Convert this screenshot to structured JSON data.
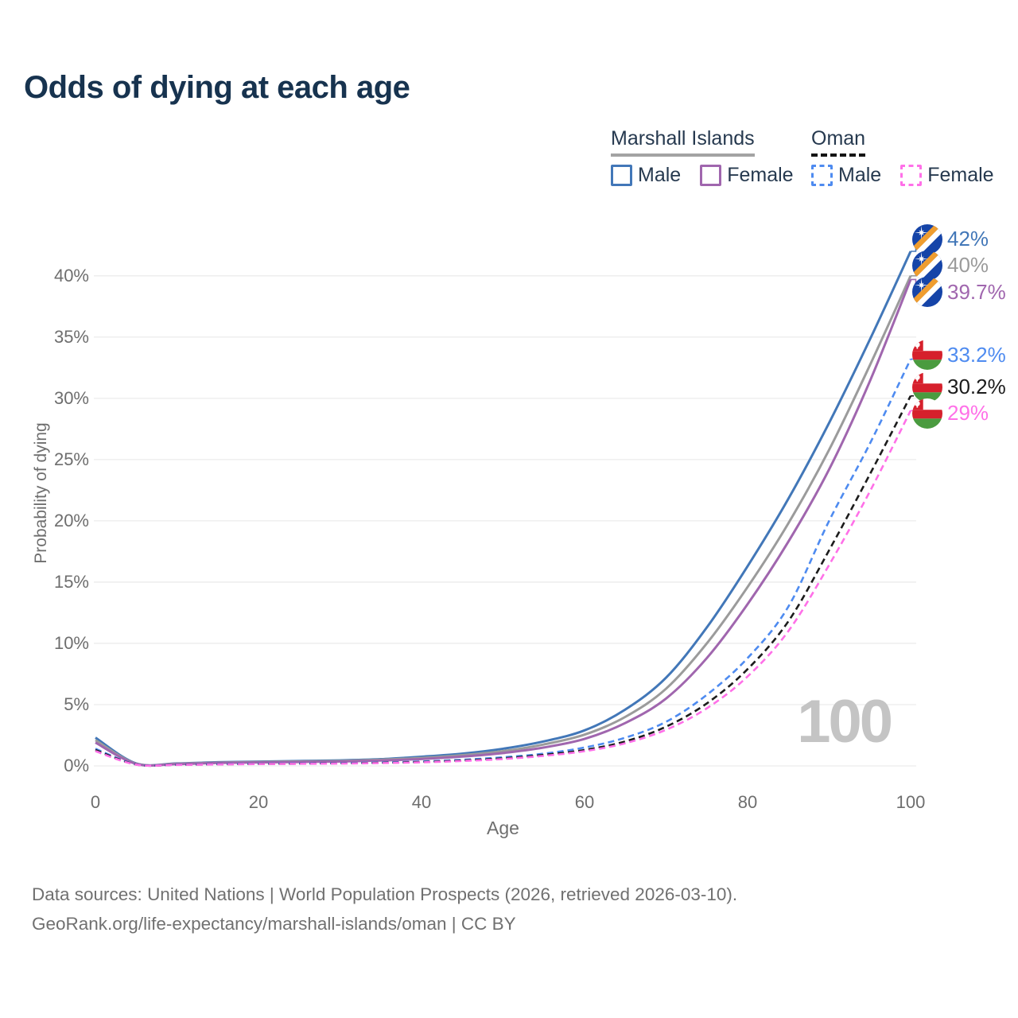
{
  "title": "Odds of dying at each age",
  "legend": {
    "groups": [
      {
        "name": "Marshall Islands",
        "line_style": "solid",
        "underline_color": "#a3a3a3",
        "items": [
          {
            "label": "Male",
            "color": "#4277b8"
          },
          {
            "label": "Female",
            "color": "#a066ae"
          }
        ]
      },
      {
        "name": "Oman",
        "line_style": "dashed",
        "underline_color": "#141414",
        "items": [
          {
            "label": "Male",
            "color": "#4e8bf0"
          },
          {
            "label": "Female",
            "color": "#ff70e8"
          }
        ]
      }
    ]
  },
  "chart_data": {
    "type": "line",
    "title": "Odds of dying at each age",
    "xlabel": "Age",
    "ylabel": "Probability of dying",
    "xlim": [
      0,
      100
    ],
    "ylim": [
      0,
      44
    ],
    "xticks": [
      0,
      20,
      40,
      60,
      80,
      100
    ],
    "yticks": [
      0,
      5,
      10,
      15,
      20,
      25,
      30,
      35,
      40
    ],
    "ytick_suffix": "%",
    "grid": "horizontal",
    "legend_position": "top-right",
    "watermark": "100",
    "x": [
      0,
      5,
      10,
      15,
      20,
      25,
      30,
      35,
      40,
      45,
      50,
      55,
      60,
      65,
      70,
      75,
      80,
      85,
      90,
      95,
      100
    ],
    "series": [
      {
        "id": "mi-male",
        "name": "Marshall Islands Male",
        "country": "Marshall Islands",
        "sex": "Male",
        "flag": "mh",
        "color": "#4277b8",
        "dashed": false,
        "end_label": "42%",
        "values": [
          2.3,
          0.2,
          0.2,
          0.3,
          0.35,
          0.4,
          0.45,
          0.55,
          0.75,
          1.0,
          1.4,
          2.0,
          2.9,
          4.6,
          7.2,
          11.3,
          16.3,
          21.8,
          28.0,
          34.8,
          42.0
        ]
      },
      {
        "id": "mi-total",
        "name": "Marshall Islands Both sexes",
        "country": "Marshall Islands",
        "sex": "Both",
        "flag": "mh",
        "color": "#9b9b9b",
        "dashed": false,
        "end_label": "40%",
        "values": [
          2.1,
          0.18,
          0.18,
          0.27,
          0.32,
          0.36,
          0.4,
          0.5,
          0.65,
          0.88,
          1.2,
          1.75,
          2.55,
          4.0,
          6.3,
          10.0,
          14.6,
          19.8,
          25.8,
          32.7,
          40.0
        ]
      },
      {
        "id": "mi-female",
        "name": "Marshall Islands Female",
        "country": "Marshall Islands",
        "sex": "Female",
        "flag": "mh",
        "color": "#a066ae",
        "dashed": false,
        "end_label": "39.7%",
        "values": [
          1.9,
          0.16,
          0.15,
          0.24,
          0.28,
          0.32,
          0.36,
          0.44,
          0.56,
          0.76,
          1.05,
          1.5,
          2.2,
          3.5,
          5.5,
          8.8,
          13.2,
          18.3,
          24.2,
          31.4,
          39.7
        ]
      },
      {
        "id": "om-male",
        "name": "Oman Male",
        "country": "Oman",
        "sex": "Male",
        "flag": "om",
        "color": "#4e8bf0",
        "dashed": true,
        "end_label": "33.2%",
        "values": [
          1.4,
          0.12,
          0.1,
          0.15,
          0.18,
          0.2,
          0.23,
          0.28,
          0.36,
          0.5,
          0.7,
          1.0,
          1.5,
          2.3,
          3.6,
          5.8,
          8.8,
          13.0,
          20.0,
          26.3,
          33.2
        ]
      },
      {
        "id": "om-total",
        "name": "Oman Both sexes",
        "country": "Oman",
        "sex": "Both",
        "flag": "om",
        "color": "#1c1c1c",
        "dashed": true,
        "end_label": "30.2%",
        "values": [
          1.3,
          0.11,
          0.09,
          0.13,
          0.16,
          0.18,
          0.21,
          0.25,
          0.32,
          0.44,
          0.62,
          0.9,
          1.3,
          2.0,
          3.2,
          5.1,
          7.9,
          11.8,
          17.6,
          23.8,
          30.2
        ]
      },
      {
        "id": "om-female",
        "name": "Oman Female",
        "country": "Oman",
        "sex": "Female",
        "flag": "om",
        "color": "#ff70e8",
        "dashed": true,
        "end_label": "29%",
        "values": [
          1.2,
          0.1,
          0.08,
          0.12,
          0.15,
          0.17,
          0.19,
          0.23,
          0.29,
          0.4,
          0.56,
          0.82,
          1.2,
          1.85,
          2.95,
          4.7,
          7.3,
          11.0,
          16.4,
          22.4,
          29.0
        ]
      }
    ]
  },
  "footer": {
    "line1": "Data sources: United Nations | World Population Prospects (2026, retrieved 2026-03-10).",
    "line2": "GeoRank.org/life-expectancy/marshall-islands/oman | CC BY"
  }
}
